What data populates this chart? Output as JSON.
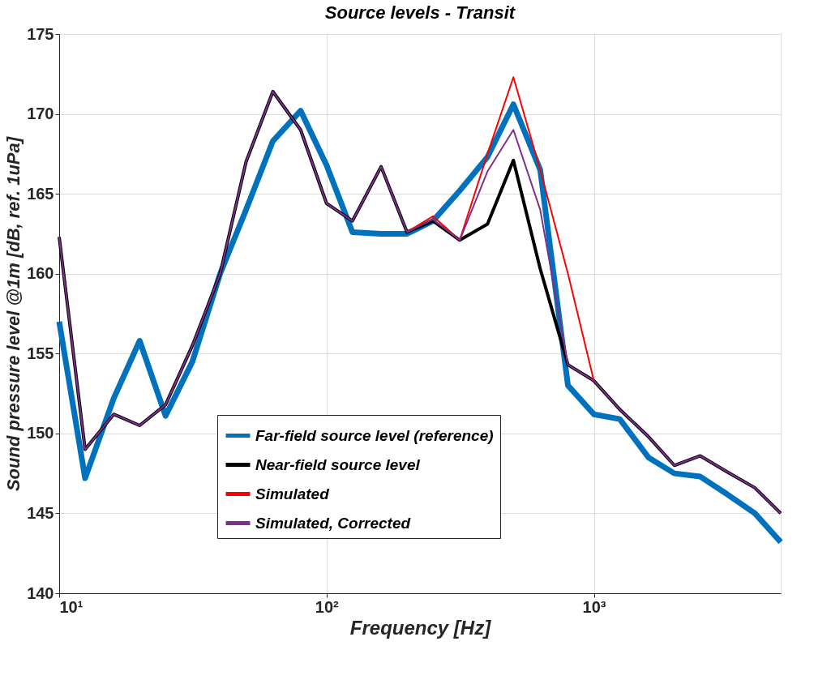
{
  "chart_data": {
    "type": "line",
    "title": "Source levels - Transit",
    "xlabel": "Frequency [Hz]",
    "ylabel": "Sound pressure level @1m [dB, ref. 1uPa]",
    "x": [
      10,
      12.5,
      16,
      20,
      25,
      31.5,
      40,
      50,
      63,
      80,
      100,
      125,
      160,
      200,
      250,
      315,
      400,
      500,
      630,
      800,
      1000,
      1250,
      1600,
      2000,
      2500,
      3150,
      4000,
      5000
    ],
    "series": [
      {
        "name": "Far-field source level (reference)",
        "color": "#0072bd",
        "values": [
          157,
          147.2,
          152.2,
          155.8,
          151.1,
          154.5,
          160,
          164,
          168.3,
          170.2,
          166.8,
          162.6,
          162.5,
          162.5,
          163.3,
          165.2,
          167.3,
          170.6,
          166.5,
          153,
          151.2,
          150.9,
          148.5,
          147.5,
          147.3,
          146.2,
          145,
          143.2
        ]
      },
      {
        "name": "Near-field source level",
        "color": "#000000",
        "values": [
          162.3,
          149,
          151.2,
          150.5,
          151.8,
          155.5,
          160,
          167,
          171.4,
          169,
          164.4,
          163.3,
          166.7,
          162.6,
          163.3,
          162.1,
          163.1,
          167.1,
          160.3,
          154.3,
          153.3,
          151.5,
          149.8,
          148,
          148.6,
          147.6,
          146.6,
          145
        ]
      },
      {
        "name": "Simulated",
        "color": "#ff0000",
        "values": [
          null,
          null,
          null,
          null,
          null,
          null,
          null,
          null,
          null,
          null,
          null,
          null,
          null,
          162.6,
          163.6,
          162.1,
          167.5,
          172.3,
          166.5,
          160,
          153.3,
          null,
          null,
          null,
          null,
          null,
          null,
          null
        ]
      },
      {
        "name": "Simulated, Corrected",
        "color": "#7e2f8e",
        "values": [
          162.3,
          149,
          151.2,
          150.5,
          151.8,
          155.5,
          160,
          167,
          171.4,
          169,
          164.4,
          163.3,
          166.7,
          162.6,
          163.4,
          162.1,
          166.4,
          169,
          164,
          154.3,
          153.3,
          151.5,
          149.8,
          148,
          148.6,
          147.6,
          146.6,
          145
        ]
      }
    ],
    "log": "x",
    "xlim": [
      10,
      5000
    ],
    "xticks": [
      {
        "value": 10,
        "label": "10¹"
      },
      {
        "value": 100,
        "label": "10²"
      },
      {
        "value": 1000,
        "label": "10³"
      }
    ],
    "ylim": [
      140,
      175
    ],
    "yticks": [
      140,
      145,
      150,
      155,
      160,
      165,
      170,
      175
    ],
    "grid": true,
    "legend": "bottom",
    "line_style": "solid",
    "marker": "none"
  }
}
